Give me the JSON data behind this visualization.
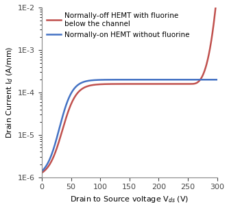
{
  "xlabel": "Drain to Source voltage V$_{ds}$ (V)",
  "ylabel": "Drain Current I$_d$ (A/mm)",
  "xlim": [
    0,
    300
  ],
  "ylim_log": [
    -6,
    -2
  ],
  "legend1": "Normally-on HEMT without fluorine",
  "legend2": "Normally-off HEMT with fluorine\nbelow the channel",
  "color_blue": "#4472C4",
  "color_red": "#C0504D",
  "background": "#ffffff",
  "ytick_labels": [
    "1E-6",
    "1E-5",
    "1E-4",
    "1E-3",
    "1E-2"
  ],
  "ytick_vals": [
    1e-06,
    1e-05,
    0.0001,
    0.001,
    0.01
  ],
  "xtick_vals": [
    0,
    50,
    100,
    150,
    200,
    250,
    300
  ]
}
